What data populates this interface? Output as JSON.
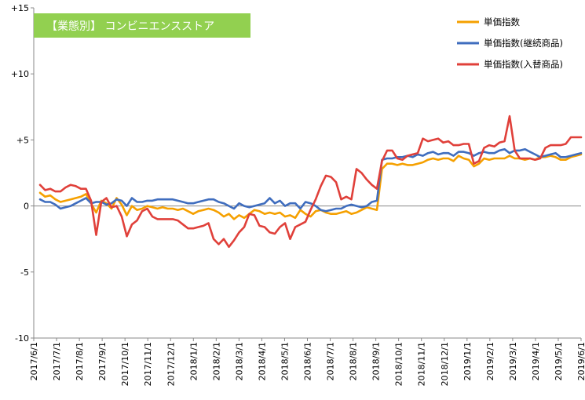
{
  "chart_data": {
    "type": "line",
    "title": "【業態別】 コンビニエンスストア",
    "title_bg_color": "#92D050",
    "xlabel": "",
    "ylabel": "",
    "ylim": [
      -10,
      15
    ],
    "y_ticks": [
      {
        "value": 15,
        "label": "+15"
      },
      {
        "value": 10,
        "label": "+10"
      },
      {
        "value": 5,
        "label": "+5"
      },
      {
        "value": 0,
        "label": "0"
      },
      {
        "value": -5,
        "label": "-5"
      },
      {
        "value": -10,
        "label": "-10"
      }
    ],
    "x_range": [
      "2017/6/1",
      "2019/6/1"
    ],
    "x_tick_labels": [
      "2017/6/1",
      "2017/7/1",
      "2017/8/1",
      "2017/9/1",
      "2017/10/1",
      "2017/11/1",
      "2017/12/1",
      "2018/1/1",
      "2018/2/1",
      "2018/3/1",
      "2018/4/1",
      "2018/5/1",
      "2018/6/1",
      "2018/7/1",
      "2018/8/1",
      "2018/9/1",
      "2018/10/1",
      "2018/11/1",
      "2018/12/1",
      "2019/1/1",
      "2019/2/1",
      "2019/3/1",
      "2019/4/1",
      "2019/5/1",
      "2019/6/1"
    ],
    "grid": false,
    "legend_position": "top-right",
    "series": [
      {
        "name": "単価指数",
        "color": "#F5A000",
        "values": [
          1.0,
          0.7,
          0.8,
          0.5,
          0.3,
          0.4,
          0.5,
          0.6,
          0.7,
          0.9,
          0.2,
          -0.5,
          0.4,
          0.2,
          -0.2,
          0.6,
          0.1,
          -0.7,
          0.0,
          -0.3,
          -0.2,
          0.0,
          -0.1,
          -0.2,
          -0.1,
          -0.2,
          -0.2,
          -0.3,
          -0.2,
          -0.4,
          -0.6,
          -0.4,
          -0.3,
          -0.2,
          -0.3,
          -0.5,
          -0.8,
          -0.6,
          -1.0,
          -0.7,
          -0.9,
          -0.6,
          -0.3,
          -0.4,
          -0.6,
          -0.5,
          -0.6,
          -0.5,
          -0.8,
          -0.7,
          -0.9,
          -0.3,
          -0.6,
          -0.8,
          -0.4,
          -0.3,
          -0.5,
          -0.6,
          -0.6,
          -0.5,
          -0.4,
          -0.6,
          -0.5,
          -0.3,
          -0.1,
          -0.2,
          -0.3,
          2.8,
          3.2,
          3.2,
          3.1,
          3.2,
          3.1,
          3.1,
          3.2,
          3.3,
          3.5,
          3.6,
          3.5,
          3.6,
          3.6,
          3.4,
          3.8,
          3.6,
          3.5,
          3.0,
          3.2,
          3.6,
          3.5,
          3.6,
          3.6,
          3.6,
          3.8,
          3.6,
          3.6,
          3.5,
          3.6,
          3.5,
          3.7,
          3.7,
          3.8,
          3.7,
          3.5,
          3.5,
          3.7,
          3.8,
          3.9
        ]
      },
      {
        "name": "単価指数(継続商品)",
        "color": "#3F6DBE",
        "values": [
          0.5,
          0.3,
          0.3,
          0.1,
          -0.2,
          -0.1,
          0.0,
          0.2,
          0.4,
          0.6,
          0.2,
          0.3,
          0.3,
          0.1,
          0.2,
          0.5,
          0.4,
          0.0,
          0.6,
          0.3,
          0.3,
          0.4,
          0.4,
          0.5,
          0.5,
          0.5,
          0.5,
          0.4,
          0.3,
          0.2,
          0.2,
          0.3,
          0.4,
          0.5,
          0.5,
          0.3,
          0.2,
          0.0,
          -0.2,
          0.2,
          0.0,
          -0.1,
          0.0,
          0.1,
          0.2,
          0.6,
          0.2,
          0.4,
          0.0,
          0.2,
          0.2,
          -0.2,
          0.3,
          0.2,
          0.0,
          -0.3,
          -0.4,
          -0.3,
          -0.2,
          -0.2,
          0.0,
          0.1,
          0.0,
          -0.1,
          0.0,
          0.3,
          0.4,
          3.5,
          3.6,
          3.6,
          3.7,
          3.7,
          3.8,
          3.7,
          3.9,
          3.8,
          4.0,
          4.1,
          3.9,
          4.0,
          4.0,
          3.8,
          4.1,
          4.1,
          4.0,
          3.8,
          4.0,
          4.1,
          4.0,
          4.0,
          4.2,
          4.3,
          4.0,
          4.2,
          4.2,
          4.3,
          4.1,
          3.9,
          3.7,
          3.8,
          3.9,
          4.0,
          3.7,
          3.7,
          3.8,
          3.9,
          4.0
        ]
      },
      {
        "name": "単価指数(入替商品)",
        "color": "#E0403A",
        "values": [
          1.6,
          1.2,
          1.3,
          1.1,
          1.1,
          1.4,
          1.6,
          1.5,
          1.3,
          1.3,
          0.4,
          -2.2,
          0.3,
          0.6,
          -0.1,
          0.0,
          -0.8,
          -2.3,
          -1.4,
          -1.1,
          -0.4,
          -0.2,
          -0.8,
          -1.0,
          -1.0,
          -1.0,
          -1.0,
          -1.1,
          -1.4,
          -1.7,
          -1.7,
          -1.6,
          -1.5,
          -1.3,
          -2.5,
          -2.9,
          -2.5,
          -3.1,
          -2.6,
          -2.0,
          -1.6,
          -0.6,
          -0.7,
          -1.5,
          -1.6,
          -2.0,
          -2.1,
          -1.6,
          -1.3,
          -2.5,
          -1.6,
          -1.4,
          -1.2,
          -0.3,
          0.5,
          1.5,
          2.3,
          2.2,
          1.8,
          0.5,
          0.7,
          0.5,
          2.8,
          2.5,
          2.0,
          1.6,
          1.3,
          3.4,
          4.2,
          4.2,
          3.6,
          3.5,
          3.8,
          3.9,
          4.0,
          5.1,
          4.9,
          5.0,
          5.1,
          4.8,
          4.9,
          4.6,
          4.6,
          4.7,
          4.7,
          3.2,
          3.4,
          4.4,
          4.6,
          4.5,
          4.8,
          4.9,
          6.8,
          4.2,
          3.6,
          3.6,
          3.6,
          3.5,
          3.6,
          4.4,
          4.6,
          4.6,
          4.6,
          4.7,
          5.2,
          5.2,
          5.2
        ]
      }
    ]
  }
}
